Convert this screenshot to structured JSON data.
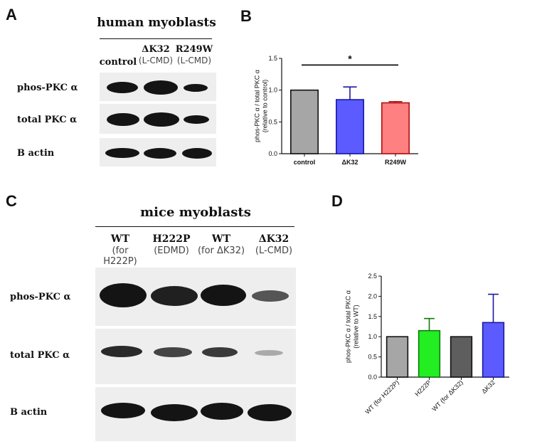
{
  "panels": {
    "A": {
      "letter": "A",
      "title": "human myoblasts",
      "lanes": [
        {
          "name": "control",
          "sub": ""
        },
        {
          "name": "ΔK32",
          "sub": "(L-CMD)"
        },
        {
          "name": "R249W",
          "sub": "(L-CMD)"
        }
      ],
      "rows": [
        "phos-PKC α",
        "total PKC α",
        "B actin"
      ]
    },
    "C": {
      "letter": "C",
      "title": "mice myoblasts",
      "lanes": [
        {
          "name": "WT",
          "sub": "(for H222P)"
        },
        {
          "name": "H222P",
          "sub": "(EDMD)"
        },
        {
          "name": "WT",
          "sub": "(for ΔK32)"
        },
        {
          "name": "ΔK32",
          "sub": "(L-CMD)"
        }
      ],
      "rows": [
        "phos-PKC α",
        "total PKC α",
        "B actin"
      ]
    },
    "B_letter": "B",
    "D_letter": "D"
  },
  "chart_data": [
    {
      "type": "bar",
      "panel": "B",
      "categories": [
        "control",
        "ΔK32",
        "R249W"
      ],
      "values": [
        1.0,
        0.85,
        0.8
      ],
      "errors": [
        0,
        0.2,
        0.02
      ],
      "ylabel": "phos-PKC α / total PKC α\n(relative to control)",
      "ylim": [
        0,
        1.5
      ],
      "yticks": [
        0.0,
        0.5,
        1.0,
        1.5
      ],
      "ytick_labels": [
        "0.0",
        "0.5",
        "1.0",
        "1.5"
      ],
      "bar_colors": [
        "#a6a6a6",
        "#5b5bff",
        "#ff8080"
      ],
      "edge_colors": [
        "#111111",
        "#1a1aa0",
        "#b01010"
      ],
      "significance": {
        "from": "control",
        "to": "R249W",
        "label": "*"
      }
    },
    {
      "type": "bar",
      "panel": "D",
      "categories": [
        "WT (for H222P)",
        "H222P",
        "WT (for ΔK32)",
        "ΔK32"
      ],
      "values": [
        1.0,
        1.15,
        1.0,
        1.35
      ],
      "errors": [
        0,
        0.3,
        0,
        0.7
      ],
      "ylabel": "phos-PKC α / total PKC α\n(relative to WT)",
      "ylim": [
        0,
        2.5
      ],
      "yticks": [
        0.0,
        0.5,
        1.0,
        1.5,
        2.0,
        2.5
      ],
      "ytick_labels": [
        "0.0",
        "0.5",
        "1.0",
        "1.5",
        "2.0",
        "2.5"
      ],
      "bar_colors": [
        "#a6a6a6",
        "#22ee22",
        "#5e5e5e",
        "#5b5bff"
      ],
      "edge_colors": [
        "#111111",
        "#117711",
        "#111111",
        "#1a1aa0"
      ]
    }
  ]
}
